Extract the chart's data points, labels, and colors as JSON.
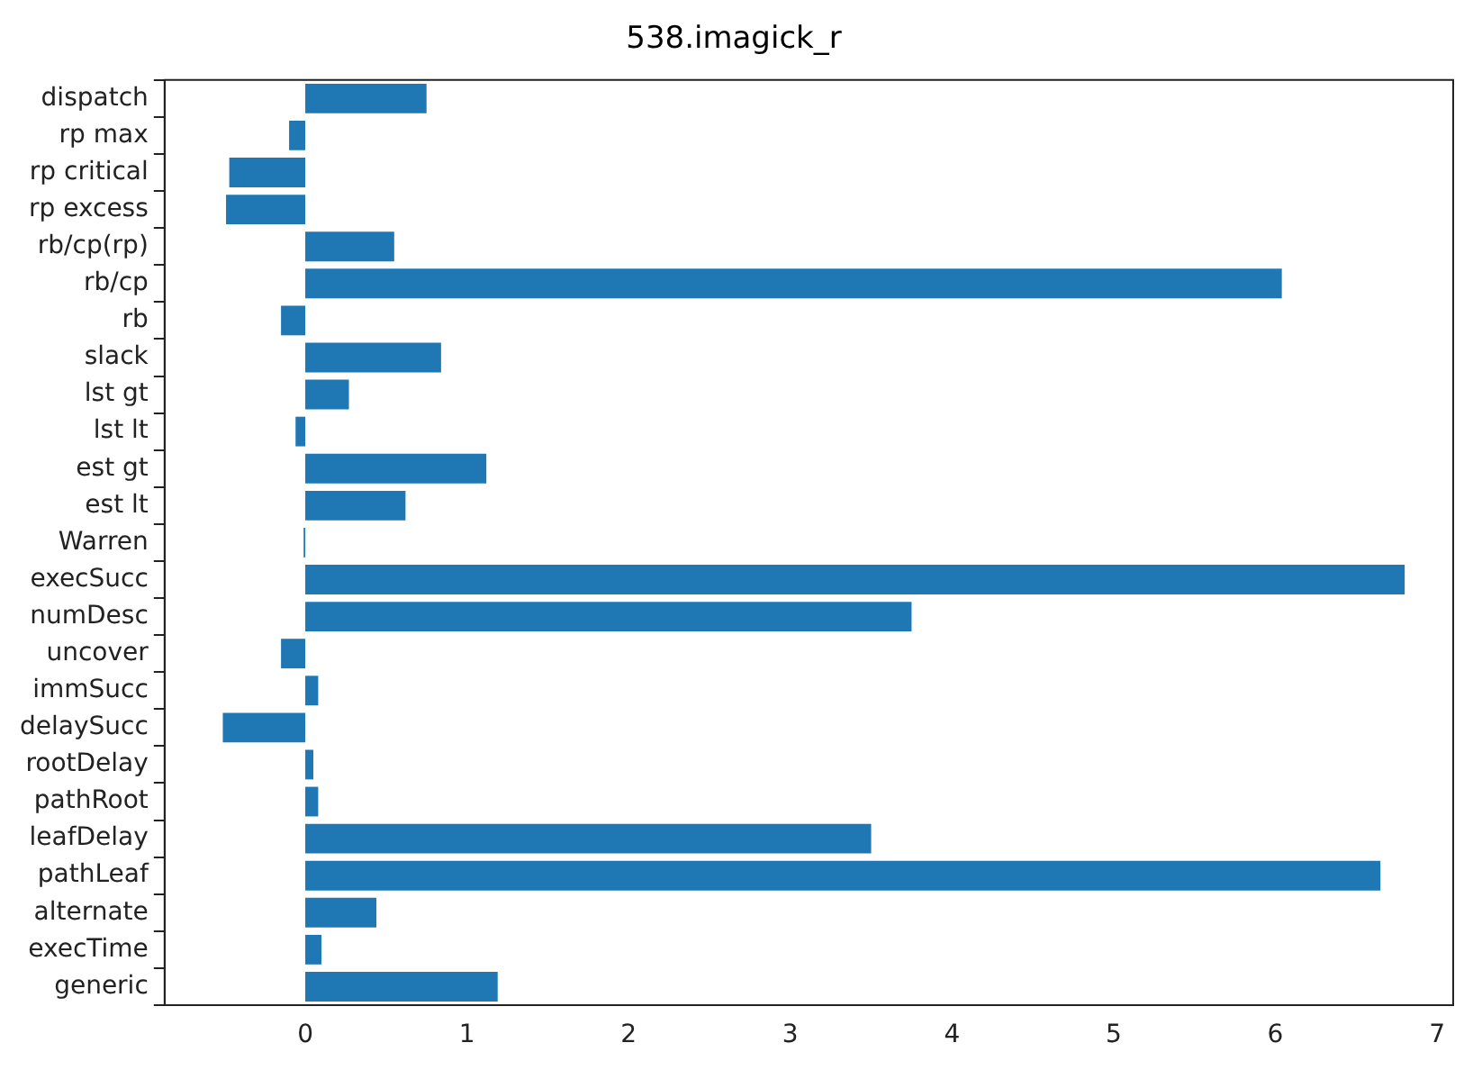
{
  "chart_data": {
    "type": "bar",
    "orientation": "horizontal",
    "title": "538.imagick_r",
    "categories": [
      "dispatch",
      "rp max",
      "rp critical",
      "rp excess",
      "rb/cp(rp)",
      "rb/cp",
      "rb",
      "slack",
      "lst gt",
      "lst lt",
      "est gt",
      "est lt",
      "Warren",
      "execSucc",
      "numDesc",
      "uncover",
      "immSucc",
      "delaySucc",
      "rootDelay",
      "pathRoot",
      "leafDelay",
      "pathLeaf",
      "alternate",
      "execTime",
      "generic"
    ],
    "values": [
      0.75,
      -0.1,
      -0.47,
      -0.49,
      0.55,
      6.04,
      -0.15,
      0.84,
      0.27,
      -0.06,
      1.12,
      0.62,
      -0.01,
      6.8,
      3.75,
      -0.15,
      0.08,
      -0.51,
      0.05,
      0.08,
      3.5,
      6.65,
      0.44,
      0.1,
      1.19
    ],
    "color": "#1f77b4",
    "xlim": [
      -0.87,
      7.1
    ],
    "xticks": [
      0,
      1,
      2,
      3,
      4,
      5,
      6,
      7
    ],
    "grid": false,
    "legend": false
  }
}
